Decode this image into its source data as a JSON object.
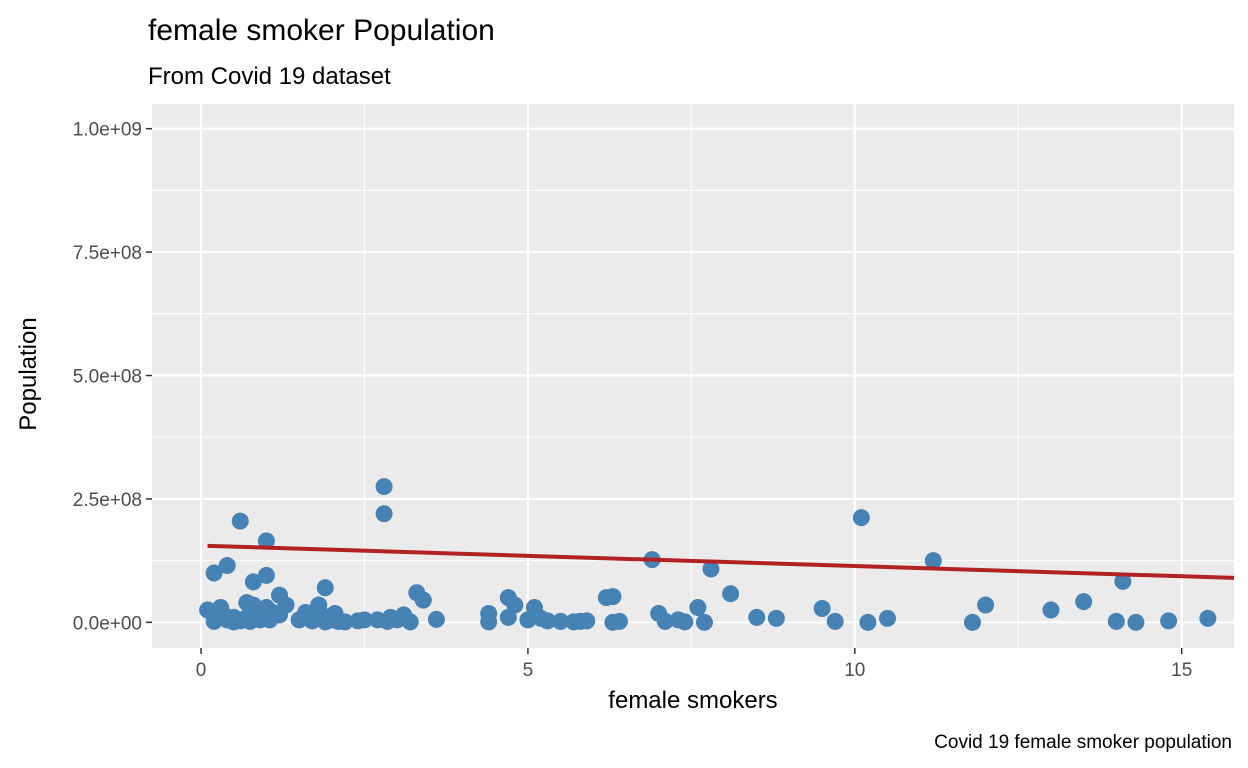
{
  "chart_data": {
    "type": "scatter",
    "title": "female smoker Population",
    "subtitle": "From Covid 19 dataset",
    "xlabel": "female smokers",
    "ylabel": "Population",
    "caption": "Covid 19 female smoker population",
    "xlim": [
      -0.75,
      15.8
    ],
    "ylim": [
      -52000000,
      1050000000
    ],
    "x_ticks": [
      0,
      5,
      10,
      15
    ],
    "x_tick_labels": [
      "0",
      "5",
      "10",
      "15"
    ],
    "y_ticks": [
      0,
      250000000,
      500000000,
      750000000,
      1000000000
    ],
    "y_tick_labels": [
      "0.0e+00",
      "2.5e+08",
      "5.0e+08",
      "7.5e+08",
      "1.0e+09"
    ],
    "grid": true,
    "colors": {
      "panel": "#ebebeb",
      "grid": "#ffffff",
      "points": "#4682b4",
      "trend": "#b22222"
    },
    "trend_line": {
      "x": [
        0.1,
        15.8
      ],
      "y": [
        155000000,
        90000000
      ]
    },
    "points": [
      {
        "x": 0.1,
        "y": 25000000
      },
      {
        "x": 0.2,
        "y": 100000000
      },
      {
        "x": 0.2,
        "y": 2000000
      },
      {
        "x": 0.3,
        "y": 30000000
      },
      {
        "x": 0.35,
        "y": 15000000
      },
      {
        "x": 0.4,
        "y": 115000000
      },
      {
        "x": 0.4,
        "y": 5000000
      },
      {
        "x": 0.5,
        "y": 10000000
      },
      {
        "x": 0.5,
        "y": 1000000
      },
      {
        "x": 0.6,
        "y": 205000000
      },
      {
        "x": 0.6,
        "y": 3000000
      },
      {
        "x": 0.7,
        "y": 40000000
      },
      {
        "x": 0.7,
        "y": 10000000
      },
      {
        "x": 0.75,
        "y": 2000000
      },
      {
        "x": 0.8,
        "y": 82000000
      },
      {
        "x": 0.8,
        "y": 35000000
      },
      {
        "x": 0.85,
        "y": 25000000
      },
      {
        "x": 0.9,
        "y": 5000000
      },
      {
        "x": 0.9,
        "y": 15000000
      },
      {
        "x": 1.0,
        "y": 165000000
      },
      {
        "x": 1.0,
        "y": 95000000
      },
      {
        "x": 1.0,
        "y": 30000000
      },
      {
        "x": 1.05,
        "y": 5000000
      },
      {
        "x": 1.1,
        "y": 20000000
      },
      {
        "x": 1.2,
        "y": 55000000
      },
      {
        "x": 1.2,
        "y": 15000000
      },
      {
        "x": 1.3,
        "y": 35000000
      },
      {
        "x": 1.5,
        "y": 5000000
      },
      {
        "x": 1.6,
        "y": 20000000
      },
      {
        "x": 1.7,
        "y": 3000000
      },
      {
        "x": 1.75,
        "y": 10000000
      },
      {
        "x": 1.8,
        "y": 35000000
      },
      {
        "x": 1.85,
        "y": 15000000
      },
      {
        "x": 1.9,
        "y": 70000000
      },
      {
        "x": 1.9,
        "y": 1000000
      },
      {
        "x": 2.0,
        "y": 5000000
      },
      {
        "x": 2.05,
        "y": 18000000
      },
      {
        "x": 2.1,
        "y": 2000000
      },
      {
        "x": 2.2,
        "y": 1000000
      },
      {
        "x": 2.4,
        "y": 3000000
      },
      {
        "x": 2.5,
        "y": 5000000
      },
      {
        "x": 2.7,
        "y": 5000000
      },
      {
        "x": 2.8,
        "y": 275000000
      },
      {
        "x": 2.8,
        "y": 220000000
      },
      {
        "x": 2.85,
        "y": 2000000
      },
      {
        "x": 2.9,
        "y": 10000000
      },
      {
        "x": 3.0,
        "y": 5000000
      },
      {
        "x": 3.1,
        "y": 15000000
      },
      {
        "x": 3.2,
        "y": 1000000
      },
      {
        "x": 3.3,
        "y": 60000000
      },
      {
        "x": 3.4,
        "y": 45000000
      },
      {
        "x": 3.6,
        "y": 6000000
      },
      {
        "x": 4.4,
        "y": 18000000
      },
      {
        "x": 4.4,
        "y": 1000000
      },
      {
        "x": 4.7,
        "y": 50000000
      },
      {
        "x": 4.7,
        "y": 10000000
      },
      {
        "x": 4.8,
        "y": 35000000
      },
      {
        "x": 5.0,
        "y": 5000000
      },
      {
        "x": 5.1,
        "y": 30000000
      },
      {
        "x": 5.2,
        "y": 8000000
      },
      {
        "x": 5.3,
        "y": 3000000
      },
      {
        "x": 5.5,
        "y": 2000000
      },
      {
        "x": 5.7,
        "y": 1000000
      },
      {
        "x": 5.8,
        "y": 2000000
      },
      {
        "x": 5.9,
        "y": 3000000
      },
      {
        "x": 6.2,
        "y": 50000000
      },
      {
        "x": 6.3,
        "y": 52000000
      },
      {
        "x": 6.3,
        "y": 0
      },
      {
        "x": 6.4,
        "y": 2000000
      },
      {
        "x": 6.9,
        "y": 127000000
      },
      {
        "x": 7.0,
        "y": 18000000
      },
      {
        "x": 7.1,
        "y": 2000000
      },
      {
        "x": 7.3,
        "y": 5000000
      },
      {
        "x": 7.4,
        "y": 1000000
      },
      {
        "x": 7.6,
        "y": 30000000
      },
      {
        "x": 7.7,
        "y": 0
      },
      {
        "x": 7.8,
        "y": 108000000
      },
      {
        "x": 8.1,
        "y": 58000000
      },
      {
        "x": 8.5,
        "y": 10000000
      },
      {
        "x": 8.8,
        "y": 8000000
      },
      {
        "x": 9.5,
        "y": 28000000
      },
      {
        "x": 9.7,
        "y": 2000000
      },
      {
        "x": 10.1,
        "y": 212000000
      },
      {
        "x": 10.2,
        "y": 0
      },
      {
        "x": 10.5,
        "y": 8000000
      },
      {
        "x": 11.2,
        "y": 125000000
      },
      {
        "x": 11.8,
        "y": 0
      },
      {
        "x": 12.0,
        "y": 35000000
      },
      {
        "x": 13.0,
        "y": 25000000
      },
      {
        "x": 13.5,
        "y": 42000000
      },
      {
        "x": 14.0,
        "y": 2000000
      },
      {
        "x": 14.1,
        "y": 83000000
      },
      {
        "x": 14.3,
        "y": 0
      },
      {
        "x": 14.8,
        "y": 3000000
      },
      {
        "x": 15.4,
        "y": 8000000
      }
    ]
  }
}
